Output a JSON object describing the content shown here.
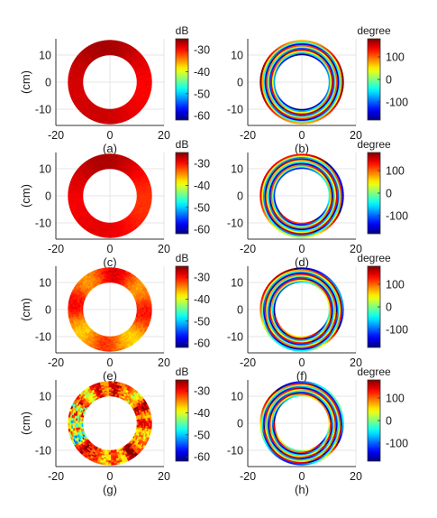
{
  "chart_data": [
    {
      "type": "heatmap",
      "caption": "(a)",
      "quantity": "magnitude",
      "ylabel": "(cm)",
      "xlabel": "",
      "xticks": [
        -20,
        0,
        20
      ],
      "yticks": [
        10,
        0,
        -10
      ],
      "xlim": [
        -20,
        20
      ],
      "ylim": [
        -16,
        16
      ],
      "inner_radius_cm": 10,
      "outer_radius_cm": 15.5,
      "colorbar": {
        "title": "dB",
        "ticks": [
          -30,
          -40,
          -50,
          -60
        ],
        "range": [
          -62,
          -25
        ]
      },
      "colormap": "jet",
      "level_dB": -28,
      "variation_dB": 2,
      "pattern": "smooth"
    },
    {
      "type": "heatmap",
      "caption": "(b)",
      "quantity": "phase",
      "ylabel": "",
      "xlabel": "",
      "xticks": [
        -20,
        0,
        20
      ],
      "yticks": [
        10,
        0,
        -10
      ],
      "xlim": [
        -20,
        20
      ],
      "ylim": [
        -16,
        16
      ],
      "inner_radius_cm": 10,
      "outer_radius_cm": 15.5,
      "colorbar": {
        "title": "degree",
        "ticks": [
          100,
          0,
          -100
        ],
        "range": [
          -180,
          180
        ]
      },
      "colormap": "jet",
      "phase_rings": 3,
      "twist": 0.0
    },
    {
      "type": "heatmap",
      "caption": "(c)",
      "quantity": "magnitude",
      "ylabel": "(cm)",
      "xlabel": "",
      "xticks": [
        -20,
        0,
        20
      ],
      "yticks": [
        10,
        0,
        -10
      ],
      "xlim": [
        -20,
        20
      ],
      "ylim": [
        -16,
        16
      ],
      "inner_radius_cm": 10,
      "outer_radius_cm": 15.5,
      "colorbar": {
        "title": "dB",
        "ticks": [
          -30,
          -40,
          -50,
          -60
        ],
        "range": [
          -62,
          -25
        ]
      },
      "colormap": "jet",
      "level_dB": -29,
      "variation_dB": 3,
      "pattern": "smooth"
    },
    {
      "type": "heatmap",
      "caption": "(d)",
      "quantity": "phase",
      "ylabel": "",
      "xlabel": "",
      "xticks": [
        -20,
        0,
        20
      ],
      "yticks": [
        10,
        0,
        -10
      ],
      "xlim": [
        -20,
        20
      ],
      "ylim": [
        -16,
        16
      ],
      "inner_radius_cm": 10,
      "outer_radius_cm": 15.5,
      "colorbar": {
        "title": "degree",
        "ticks": [
          100,
          0,
          -100
        ],
        "range": [
          -180,
          180
        ]
      },
      "colormap": "jet",
      "phase_rings": 3,
      "twist": 0.4
    },
    {
      "type": "heatmap",
      "caption": "(e)",
      "quantity": "magnitude",
      "ylabel": "(cm)",
      "xlabel": "",
      "xticks": [
        -20,
        0,
        20
      ],
      "yticks": [
        10,
        0,
        -10
      ],
      "xlim": [
        -20,
        20
      ],
      "ylim": [
        -16,
        16
      ],
      "inner_radius_cm": 10,
      "outer_radius_cm": 15.5,
      "colorbar": {
        "title": "dB",
        "ticks": [
          -30,
          -40,
          -50,
          -60
        ],
        "range": [
          -62,
          -25
        ]
      },
      "colormap": "jet",
      "level_dB": -33,
      "variation_dB": 5,
      "pattern": "lobed"
    },
    {
      "type": "heatmap",
      "caption": "(f)",
      "quantity": "phase",
      "ylabel": "",
      "xlabel": "",
      "xticks": [
        -20,
        0,
        20
      ],
      "yticks": [
        10,
        0,
        -10
      ],
      "xlim": [
        -20,
        20
      ],
      "ylim": [
        -16,
        16
      ],
      "inner_radius_cm": 10,
      "outer_radius_cm": 15.5,
      "colorbar": {
        "title": "degree",
        "ticks": [
          100,
          0,
          -100
        ],
        "range": [
          -180,
          180
        ]
      },
      "colormap": "jet",
      "phase_rings": 3,
      "twist": 0.8
    },
    {
      "type": "heatmap",
      "caption": "(g)",
      "quantity": "magnitude",
      "ylabel": "(cm)",
      "xlabel": "",
      "xticks": [
        -20,
        0,
        20
      ],
      "yticks": [
        10,
        0,
        -10
      ],
      "xlim": [
        -20,
        20
      ],
      "ylim": [
        -16,
        16
      ],
      "inner_radius_cm": 10,
      "outer_radius_cm": 15.5,
      "colorbar": {
        "title": "dB",
        "ticks": [
          -30,
          -40,
          -50,
          -60
        ],
        "range": [
          -62,
          -25
        ]
      },
      "colormap": "jet",
      "level_dB": -33,
      "variation_dB": 9,
      "pattern": "speckled"
    },
    {
      "type": "heatmap",
      "caption": "(h)",
      "quantity": "phase",
      "ylabel": "",
      "xlabel": "",
      "xticks": [
        -20,
        0,
        20
      ],
      "yticks": [
        10,
        0,
        -10
      ],
      "xlim": [
        -20,
        20
      ],
      "ylim": [
        -16,
        16
      ],
      "inner_radius_cm": 10,
      "outer_radius_cm": 15.5,
      "colorbar": {
        "title": "degree",
        "ticks": [
          100,
          0,
          -100
        ],
        "range": [
          -180,
          180
        ]
      },
      "colormap": "jet",
      "phase_rings": 3,
      "twist": 1.2
    }
  ]
}
